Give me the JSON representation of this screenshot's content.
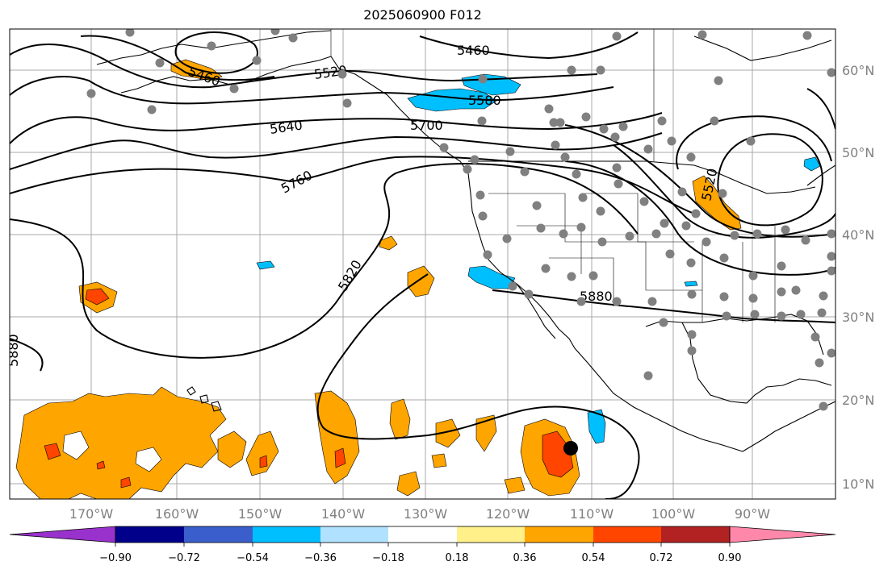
{
  "title": "2025060900 F012",
  "longitude_labels": [
    "170°W",
    "160°W",
    "150°W",
    "140°W",
    "130°W",
    "120°W",
    "110°W",
    "100°W",
    "90°W"
  ],
  "latitude_labels": [
    "60°N",
    "50°N",
    "40°N",
    "30°N",
    "20°N",
    "10°N"
  ],
  "contour_labels": [
    "5460",
    "5460",
    "5520",
    "5580",
    "5640",
    "5700",
    "5760",
    "5820",
    "5880",
    "5880",
    "5520"
  ],
  "colorbar": {
    "tick_labels": [
      "−0.90",
      "−0.72",
      "−0.54",
      "−0.36",
      "−0.18",
      "0.18",
      "0.36",
      "0.54",
      "0.72",
      "0.90"
    ],
    "colors": [
      "#9932cc",
      "#00008b",
      "#3a5fcd",
      "#00bfff",
      "#b0e2ff",
      "#ffffff",
      "#fff08a",
      "#ffa500",
      "#ff4500",
      "#b22222",
      "#ff88aa"
    ]
  },
  "colors": {
    "station_marker": "#808080",
    "storm_marker": "#000000",
    "grid": "#a9a9a9"
  }
}
